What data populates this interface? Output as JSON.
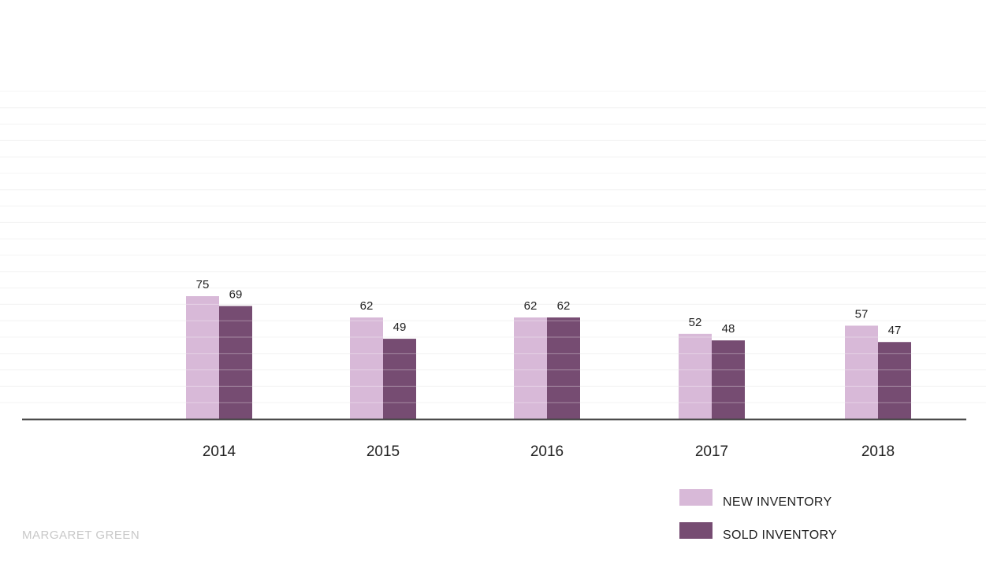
{
  "credit": "MARGARET GREEN",
  "colors": {
    "new_inventory": "#d8b9d8",
    "sold_inventory": "#764c72",
    "axis": "#444444",
    "grid": "#eeeeee"
  },
  "chart_data": {
    "type": "bar",
    "title": "",
    "xlabel": "",
    "ylabel": "",
    "categories": [
      "2014",
      "2015",
      "2016",
      "2017",
      "2018"
    ],
    "series": [
      {
        "name": "NEW INVENTORY",
        "values": [
          75,
          62,
          62,
          52,
          57
        ]
      },
      {
        "name": "SOLD INVENTORY",
        "values": [
          69,
          49,
          62,
          48,
          47
        ]
      }
    ],
    "ylim": [
      0,
      200
    ],
    "grid": true,
    "legend_position": "bottom-right"
  }
}
